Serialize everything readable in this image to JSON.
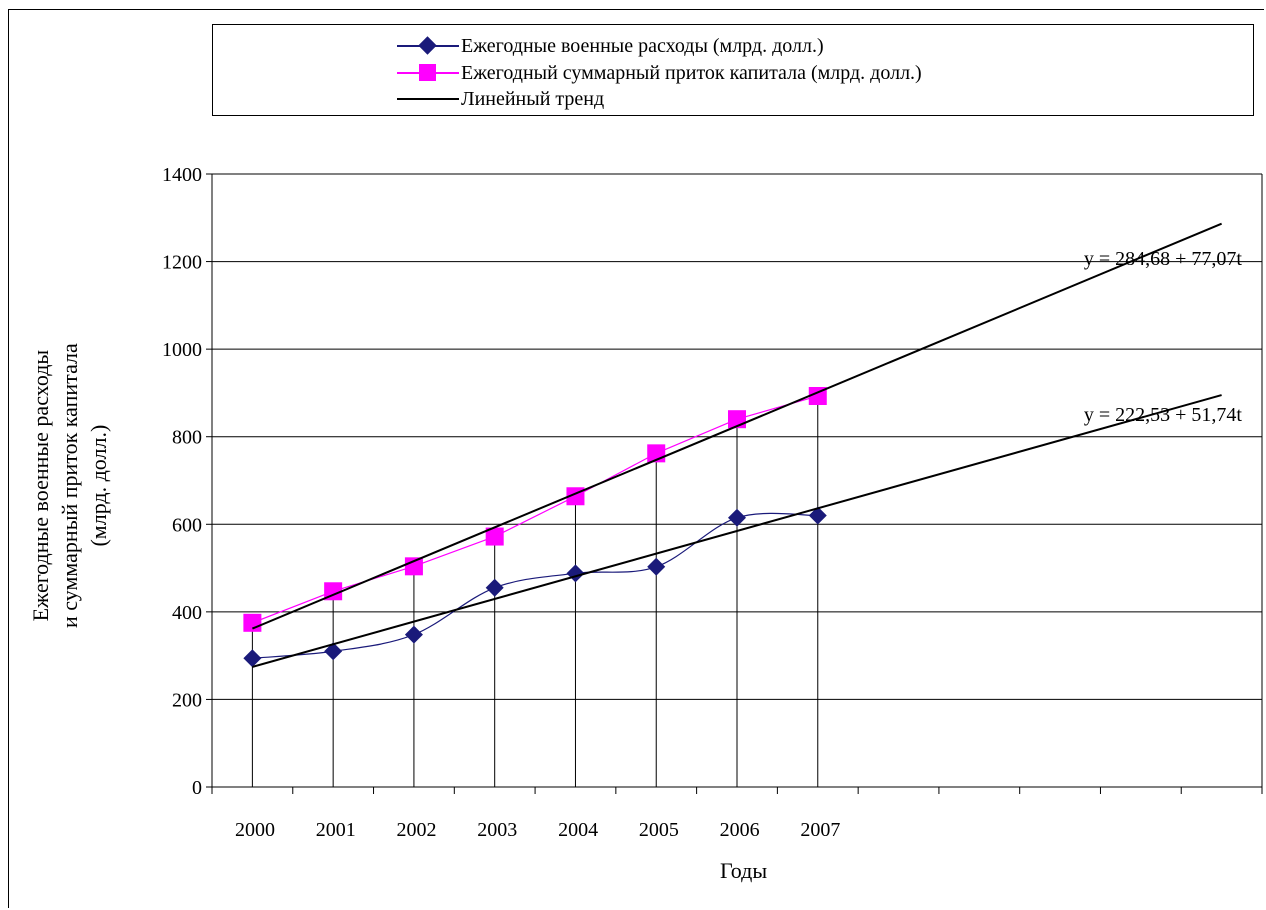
{
  "chart_data": {
    "type": "line",
    "xlabel": "Годы",
    "ylabel_lines": [
      "Ежегодные военные расходы",
      "и суммарный приток капитала",
      "(млрд. долл.)"
    ],
    "ylim": [
      0,
      1400
    ],
    "yticks": [
      0,
      200,
      400,
      600,
      800,
      1000,
      1200,
      1400
    ],
    "categories": [
      "2000",
      "2001",
      "2002",
      "2003",
      "2004",
      "2005",
      "2006",
      "2007"
    ],
    "x_slots": 13,
    "grid": "horizontal",
    "legend_position": "top",
    "series": [
      {
        "name": "Ежегодные военные расходы (млрд. долл.)",
        "values": [
          294,
          310,
          348,
          455,
          488,
          503,
          615,
          620
        ],
        "color": "#1a1a7a",
        "marker": "diamond",
        "smooth": true
      },
      {
        "name": "Ежегодный суммарный приток капитала (млрд. долл.)",
        "values": [
          375,
          447,
          504,
          572,
          664,
          762,
          840,
          893
        ],
        "color": "#ff00ff",
        "marker": "square"
      }
    ],
    "trendlines": [
      {
        "equation": "y = 284,68 + 77,07t",
        "intercept": 284.68,
        "slope": 77.07,
        "color": "#000000"
      },
      {
        "equation": "y = 222,53 + 51,74t",
        "intercept": 222.53,
        "slope": 51.74,
        "color": "#000000"
      }
    ],
    "trend_legend_label": "Линейный тренд",
    "drop_lines": true
  }
}
